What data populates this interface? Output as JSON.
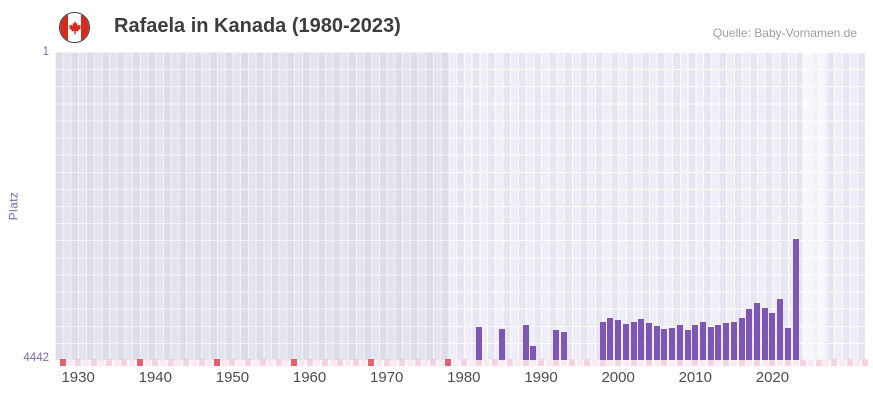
{
  "header": {
    "title": "Rafaela in Kanada (1980-2023)",
    "source": "Quelle: Baby-Vornamen.de",
    "flag_icon": "canada-flag-icon"
  },
  "chart_data": {
    "type": "bar",
    "title": "Rafaela in Kanada (1980-2023)",
    "xlabel": "",
    "ylabel": "Platz",
    "grid": true,
    "legend": false,
    "y_axis": {
      "min": 1,
      "max": 4442,
      "inverted": true,
      "top_label": "1",
      "bottom_label": "4442"
    },
    "x_axis": {
      "tick_years": [
        1930,
        1940,
        1950,
        1960,
        1970,
        1980,
        1990,
        2000,
        2010,
        2020
      ],
      "domain_start": 1927.5,
      "domain_end": 2032.5
    },
    "bars": [
      {
        "year": 1982,
        "rank": 3965
      },
      {
        "year": 1985,
        "rank": 3990
      },
      {
        "year": 1988,
        "rank": 3940
      },
      {
        "year": 1989,
        "rank": 4235
      },
      {
        "year": 1992,
        "rank": 4010
      },
      {
        "year": 1993,
        "rank": 4045
      },
      {
        "year": 1998,
        "rank": 3900
      },
      {
        "year": 1999,
        "rank": 3830
      },
      {
        "year": 2000,
        "rank": 3860
      },
      {
        "year": 2001,
        "rank": 3920
      },
      {
        "year": 2002,
        "rank": 3890
      },
      {
        "year": 2003,
        "rank": 3850
      },
      {
        "year": 2004,
        "rank": 3910
      },
      {
        "year": 2005,
        "rank": 3950
      },
      {
        "year": 2006,
        "rank": 4000
      },
      {
        "year": 2007,
        "rank": 3980
      },
      {
        "year": 2008,
        "rank": 3940
      },
      {
        "year": 2009,
        "rank": 4005
      },
      {
        "year": 2010,
        "rank": 3930
      },
      {
        "year": 2011,
        "rank": 3900
      },
      {
        "year": 2012,
        "rank": 3960
      },
      {
        "year": 2013,
        "rank": 3935
      },
      {
        "year": 2014,
        "rank": 3910
      },
      {
        "year": 2015,
        "rank": 3890
      },
      {
        "year": 2016,
        "rank": 3840
      },
      {
        "year": 2017,
        "rank": 3700
      },
      {
        "year": 2018,
        "rank": 3620
      },
      {
        "year": 2019,
        "rank": 3690
      },
      {
        "year": 2020,
        "rank": 3760
      },
      {
        "year": 2021,
        "rank": 3560
      },
      {
        "year": 2022,
        "rank": 3980
      },
      {
        "year": 2023,
        "rank": 2690
      }
    ],
    "red_marker_years": [
      1928,
      1938,
      1948,
      1958,
      1968,
      1978
    ],
    "regions": {
      "no_data": {
        "start": 1927.5,
        "end": 1978.6
      },
      "recent_highlight": {
        "start": 2024.3,
        "end": 2027.3
      }
    },
    "colors": {
      "bar": "#7E57B5",
      "plot_bg": "#E7E5F1",
      "red_marker": "#E8606C",
      "strip_pink_a": "#F6D3E2",
      "strip_pink_b": "#FBEAF2",
      "axis_label": "#7D68A8",
      "tick_label": "#4D4D4D",
      "title": "#3D3D3D",
      "source": "#9E9E9E"
    }
  }
}
